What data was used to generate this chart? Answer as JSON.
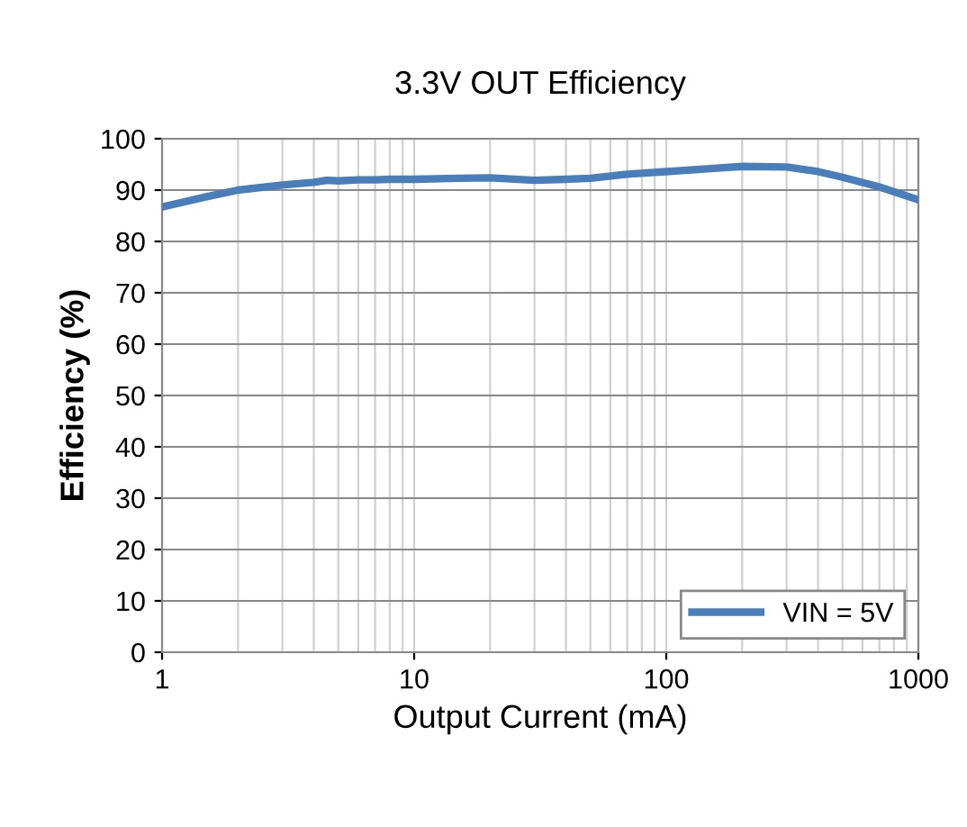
{
  "chart_data": {
    "type": "line",
    "title": "3.3V OUT Efficiency",
    "xlabel": "Output Current (mA)",
    "ylabel": "Efficiency (%)",
    "log": "x",
    "series": [
      {
        "name": "VIN = 5V",
        "color": "#4a7ebb",
        "x": [
          1,
          1.5,
          2,
          3,
          4,
          4.5,
          5,
          6,
          7,
          8,
          10,
          15,
          20,
          30,
          40,
          50,
          70,
          100,
          150,
          200,
          300,
          400,
          500,
          700,
          1000
        ],
        "values": [
          86.7,
          88.7,
          90.0,
          91.0,
          91.5,
          91.9,
          91.8,
          92.0,
          92.0,
          92.1,
          92.1,
          92.3,
          92.4,
          91.9,
          92.1,
          92.3,
          93.1,
          93.6,
          94.2,
          94.6,
          94.5,
          93.6,
          92.5,
          90.6,
          88.1
        ]
      }
    ],
    "xlim": [
      1,
      1000
    ],
    "xticks": [
      1,
      10,
      100,
      1000
    ],
    "ylim": [
      0,
      100
    ],
    "yticks": [
      0,
      10,
      20,
      30,
      40,
      50,
      60,
      70,
      80,
      90,
      100
    ],
    "grid": true,
    "legend": "bottom right",
    "line_style": "solid",
    "marker": "none"
  }
}
